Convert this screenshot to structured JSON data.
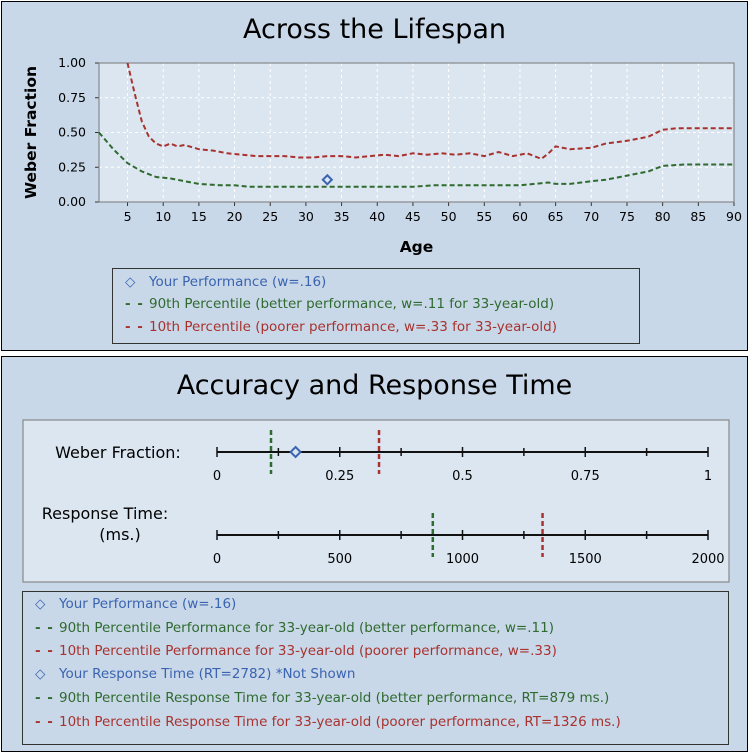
{
  "colors": {
    "panel_bg": "#c9d8e9",
    "plot_bg": "#dce6f1",
    "green": "#2f6a2f",
    "red": "#a8322e",
    "blue": "#3a63b0"
  },
  "chart_data": [
    {
      "type": "line",
      "title": "Across the Lifespan",
      "xlabel": "Age",
      "ylabel": "Weber Fraction",
      "xlim": [
        1,
        90
      ],
      "ylim": [
        0,
        1.0
      ],
      "xticks": [
        "5",
        "10",
        "15",
        "20",
        "25",
        "30",
        "35",
        "40",
        "45",
        "50",
        "55",
        "60",
        "65",
        "70",
        "75",
        "80",
        "85",
        "90"
      ],
      "yticks": [
        "0.00",
        "0.25",
        "0.50",
        "0.75",
        "1.00"
      ],
      "grid": true,
      "series": [
        {
          "name": "90th Percentile (better performance, w=.11 for 33-year-old)",
          "style": "dashed",
          "color": "#2f6a2f",
          "x": [
            1,
            3,
            5,
            7,
            9,
            11,
            13,
            15,
            18,
            20,
            22,
            25,
            28,
            30,
            33,
            35,
            37,
            40,
            43,
            45,
            48,
            50,
            52,
            55,
            57,
            60,
            62,
            64,
            65,
            67,
            70,
            72,
            75,
            78,
            80,
            83,
            85,
            88,
            90
          ],
          "y": [
            0.5,
            0.38,
            0.28,
            0.22,
            0.18,
            0.17,
            0.15,
            0.13,
            0.12,
            0.12,
            0.11,
            0.11,
            0.11,
            0.11,
            0.11,
            0.11,
            0.11,
            0.11,
            0.11,
            0.11,
            0.12,
            0.12,
            0.12,
            0.12,
            0.12,
            0.12,
            0.13,
            0.14,
            0.13,
            0.13,
            0.15,
            0.16,
            0.19,
            0.22,
            0.26,
            0.27,
            0.27,
            0.27,
            0.27
          ]
        },
        {
          "name": "10th Percentile (poorer performance, w=.33 for 33-year-old)",
          "style": "dashed",
          "color": "#a8322e",
          "x": [
            5,
            6,
            7,
            8,
            9,
            10,
            11,
            12,
            13,
            15,
            17,
            19,
            21,
            23,
            25,
            27,
            29,
            31,
            33,
            35,
            37,
            39,
            41,
            43,
            45,
            47,
            49,
            51,
            53,
            55,
            57,
            59,
            61,
            63,
            64,
            65,
            67,
            70,
            72,
            75,
            78,
            80,
            82,
            85,
            88,
            90
          ],
          "y": [
            1.0,
            0.78,
            0.58,
            0.47,
            0.42,
            0.4,
            0.42,
            0.4,
            0.41,
            0.38,
            0.37,
            0.35,
            0.34,
            0.33,
            0.33,
            0.33,
            0.32,
            0.32,
            0.33,
            0.33,
            0.32,
            0.33,
            0.34,
            0.33,
            0.35,
            0.34,
            0.35,
            0.34,
            0.35,
            0.33,
            0.36,
            0.33,
            0.35,
            0.31,
            0.35,
            0.4,
            0.38,
            0.39,
            0.42,
            0.44,
            0.47,
            0.52,
            0.53,
            0.53,
            0.53,
            0.53
          ]
        }
      ],
      "points": [
        {
          "name": "Your Performance (w=.16)",
          "x": 33,
          "y": 0.16,
          "color": "#3a63b0",
          "marker": "diamond"
        }
      ],
      "legend": [
        {
          "symbol": "◇",
          "label": "Your Performance (w=.16)",
          "color": "#3a63b0"
        },
        {
          "symbol": "- -",
          "label": "90th Percentile (better performance, w=.11 for 33-year-old)",
          "color": "#2f6a2f"
        },
        {
          "symbol": "- -",
          "label": "10th Percentile (poorer performance, w=.33 for 33-year-old)",
          "color": "#a8322e"
        }
      ],
      "legend_position": "bottom-center"
    },
    {
      "type": "number-line",
      "title": "Accuracy and Response Time",
      "rows": [
        {
          "label": "Weber Fraction:",
          "label2": "",
          "range": [
            0,
            1
          ],
          "ticks": [
            0,
            0.25,
            0.5,
            0.75,
            1
          ],
          "tick_labels": [
            "0",
            "0.25",
            "0.5",
            "0.75",
            "1"
          ],
          "minor_step": 0.125,
          "marks": [
            {
              "kind": "dashed",
              "value": 0.11,
              "color": "#2f6a2f"
            },
            {
              "kind": "dashed",
              "value": 0.33,
              "color": "#a8322e"
            },
            {
              "kind": "diamond",
              "value": 0.16,
              "color": "#3a63b0"
            }
          ]
        },
        {
          "label": "Response Time:",
          "label2": "(ms.)",
          "range": [
            0,
            2000
          ],
          "ticks": [
            0,
            500,
            1000,
            1500,
            2000
          ],
          "tick_labels": [
            "0",
            "500",
            "1000",
            "1500",
            "2000"
          ],
          "minor_step": 250,
          "marks": [
            {
              "kind": "dashed",
              "value": 879,
              "color": "#2f6a2f"
            },
            {
              "kind": "dashed",
              "value": 1326,
              "color": "#a8322e"
            }
          ]
        }
      ],
      "legend": [
        {
          "symbol": "◇",
          "label": "Your Performance (w=.16)",
          "color": "#3a63b0"
        },
        {
          "symbol": "- -",
          "label": "90th Percentile Performance for 33-year-old (better performance, w=.11)",
          "color": "#2f6a2f"
        },
        {
          "symbol": "- -",
          "label": "10th Percentile Performance for 33-year-old (poorer performance, w=.33)",
          "color": "#a8322e"
        },
        {
          "symbol": "◇",
          "label": "Your Response Time (RT=2782) *Not Shown",
          "color": "#3a63b0"
        },
        {
          "symbol": "- -",
          "label": "90th Percentile Response Time for 33-year-old (better performance, RT=879 ms.)",
          "color": "#2f6a2f"
        },
        {
          "symbol": "- -",
          "label": "10th Percentile Response Time for 33-year-old (poorer performance, RT=1326 ms.)",
          "color": "#a8322e"
        }
      ]
    }
  ]
}
